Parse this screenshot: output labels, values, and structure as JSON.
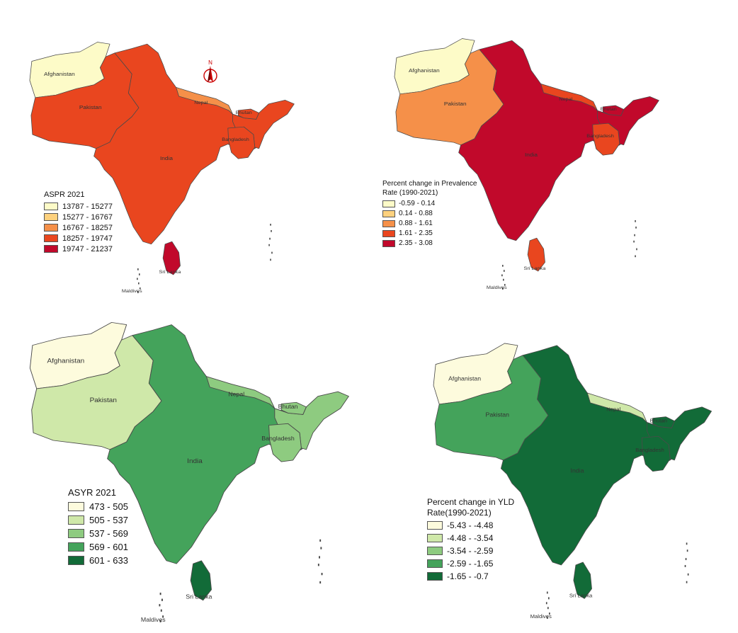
{
  "maps": [
    {
      "id": "aspr",
      "legend_title": "ASPR 2021",
      "classes": [
        "13787 - 15277",
        "15277 - 16767",
        "16767 - 18257",
        "18257 - 19747",
        "19747 - 21237"
      ],
      "palette": [
        "#fdfbc8",
        "#fdd17e",
        "#f59049",
        "#e9461f",
        "#c1092b"
      ],
      "fills": {
        "afghanistan": 0,
        "pakistan": 3,
        "india": 3,
        "nepal": 2,
        "bhutan": 3,
        "bangladesh": 3,
        "srilanka": 4,
        "maldives": 4
      },
      "labels": {
        "afghanistan": "Afghanistan",
        "pakistan": "Pakistan",
        "india": "India",
        "nepal": "Nepal",
        "bhutan": "Bhutan",
        "bangladesh": "Bangladesh",
        "srilanka": "Sri Lanka",
        "maldives": "Maldives"
      },
      "north_arrow": "N"
    },
    {
      "id": "prev_change",
      "legend_title": "Percent change in Prevalence\nRate (1990-2021)",
      "classes": [
        "-0.59 - 0.14",
        "0.14 - 0.88",
        "0.88 - 1.61",
        "1.61 - 2.35",
        "2.35 - 3.08"
      ],
      "palette": [
        "#fdfbc8",
        "#fdd17e",
        "#f59049",
        "#e9461f",
        "#c1092b"
      ],
      "fills": {
        "afghanistan": 0,
        "pakistan": 2,
        "india": 4,
        "nepal": 3,
        "bhutan": 4,
        "bangladesh": 3,
        "srilanka": 3,
        "maldives": 3
      },
      "labels": {
        "afghanistan": "Afghanistan",
        "pakistan": "Pakistan",
        "india": "India",
        "nepal": "Nepal",
        "bhutan": "Bhutan",
        "bangladesh": "Bangladesh",
        "srilanka": "Sri Lanka",
        "maldives": "Maldives"
      }
    },
    {
      "id": "asyr",
      "legend_title": "ASYR 2021",
      "classes": [
        "473 - 505",
        "505 - 537",
        "537 - 569",
        "569 - 601",
        "601 - 633"
      ],
      "palette": [
        "#fdfbdd",
        "#cfe8a9",
        "#8ecb80",
        "#44a35b",
        "#126b38"
      ],
      "fills": {
        "afghanistan": 0,
        "pakistan": 1,
        "india": 3,
        "nepal": 2,
        "bhutan": 2,
        "bangladesh": 2,
        "srilanka": 4,
        "maldives": 4
      },
      "labels": {
        "afghanistan": "Afghanistan",
        "pakistan": "Pakistan",
        "india": "India",
        "nepal": "Nepal",
        "bhutan": "Bhutan",
        "bangladesh": "Bangladesh",
        "srilanka": "Sri Lanka",
        "maldives": "Maldives"
      }
    },
    {
      "id": "yld_change",
      "legend_title": "Percent change in YLD\nRate(1990-2021)",
      "classes": [
        "-5.43 - -4.48",
        "-4.48 - -3.54",
        "-3.54 - -2.59",
        "-2.59 - -1.65",
        "-1.65 - -0.7"
      ],
      "palette": [
        "#fdfbdd",
        "#cfe8a9",
        "#8ecb80",
        "#44a35b",
        "#126b38"
      ],
      "fills": {
        "afghanistan": 0,
        "pakistan": 3,
        "india": 4,
        "nepal": 1,
        "bhutan": 4,
        "bangladesh": 4,
        "srilanka": 4,
        "maldives": 4
      },
      "labels": {
        "afghanistan": "Afghanistan",
        "pakistan": "Pakistan",
        "india": "India",
        "nepal": "Nepal",
        "bhutan": "Bhutan",
        "bangladesh": "Bangladesh",
        "srilanka": "Sri Lanka",
        "maldives": "Maldives"
      }
    }
  ]
}
